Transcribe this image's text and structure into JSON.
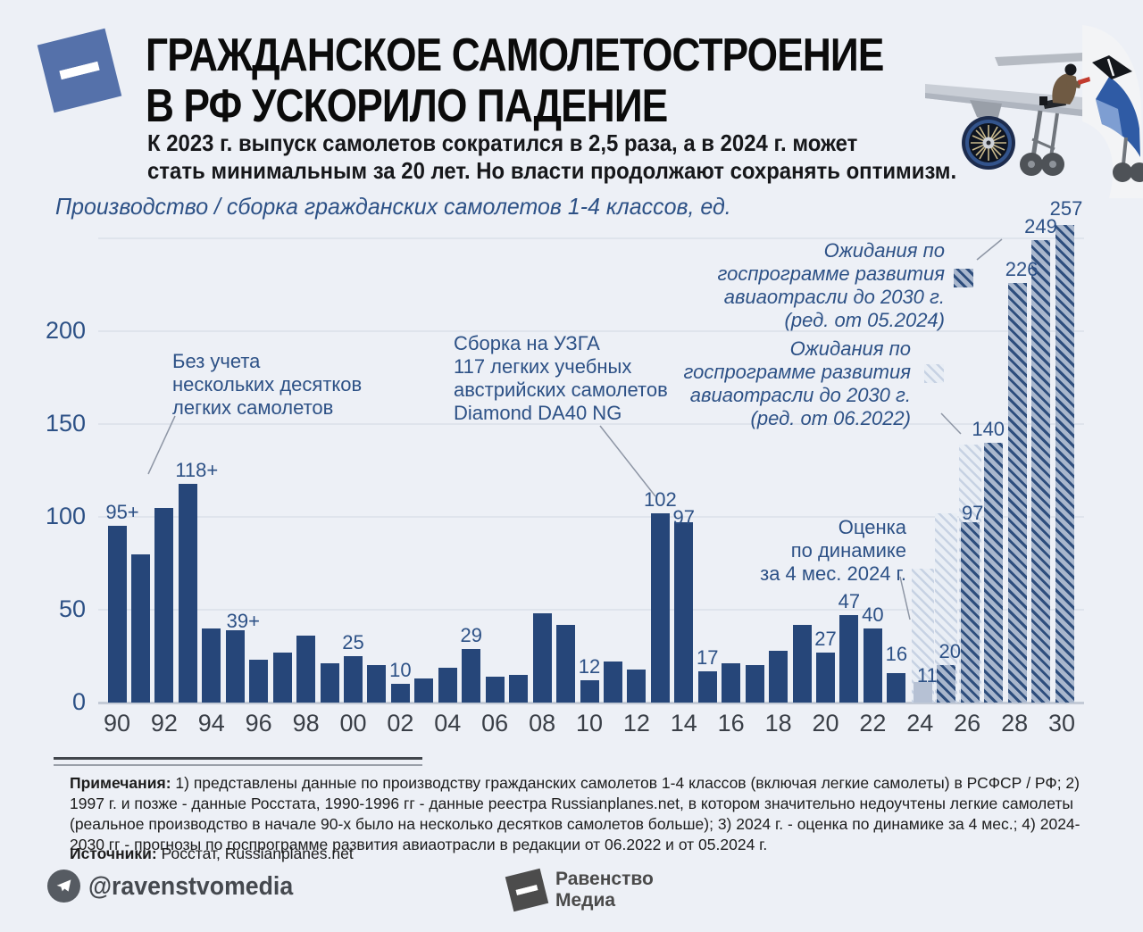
{
  "header": {
    "title_line1": "ГРАЖДАНСКОЕ САМОЛЕТОСТРОЕНИЕ",
    "title_line2": "В РФ УСКОРИЛО ПАДЕНИЕ",
    "subtitle_line1": "К 2023 г. выпуск самолетов сократился в 2,5 раза, а в 2024 г. может",
    "subtitle_line2": "стать минимальным за 20 лет. Но власти продолжают сохранять оптимизм."
  },
  "chart_data": {
    "type": "bar",
    "title": "Производство / сборка гражданских самолетов 1-4 классов, ед.",
    "ylabel": "ед.",
    "ylim": [
      0,
      250
    ],
    "y_ticks": [
      0,
      50,
      100,
      150,
      200
    ],
    "grid": true,
    "x_tick_labels": [
      "90",
      "92",
      "94",
      "96",
      "98",
      "00",
      "02",
      "04",
      "06",
      "08",
      "10",
      "12",
      "14",
      "16",
      "18",
      "20",
      "22",
      "24",
      "26",
      "28",
      "30"
    ],
    "series": [
      {
        "id": "actual_production",
        "style": "solid_navy",
        "points": [
          {
            "year": 1990,
            "value": 95,
            "label": "95+"
          },
          {
            "year": 1991,
            "value": 80
          },
          {
            "year": 1992,
            "value": 105
          },
          {
            "year": 1993,
            "value": 118,
            "label": "118+"
          },
          {
            "year": 1994,
            "value": 40
          },
          {
            "year": 1995,
            "value": 39,
            "label": "39+"
          },
          {
            "year": 1996,
            "value": 23
          },
          {
            "year": 1997,
            "value": 27
          },
          {
            "year": 1998,
            "value": 36
          },
          {
            "year": 1999,
            "value": 21
          },
          {
            "year": 2000,
            "value": 25,
            "label": "25"
          },
          {
            "year": 2001,
            "value": 20
          },
          {
            "year": 2002,
            "value": 10,
            "label": "10"
          },
          {
            "year": 2003,
            "value": 13
          },
          {
            "year": 2004,
            "value": 19
          },
          {
            "year": 2005,
            "value": 29,
            "label": "29"
          },
          {
            "year": 2006,
            "value": 14
          },
          {
            "year": 2007,
            "value": 15
          },
          {
            "year": 2008,
            "value": 48
          },
          {
            "year": 2009,
            "value": 42
          },
          {
            "year": 2010,
            "value": 12,
            "label": "12"
          },
          {
            "year": 2011,
            "value": 22
          },
          {
            "year": 2012,
            "value": 18
          },
          {
            "year": 2013,
            "value": 102,
            "label": "102"
          },
          {
            "year": 2014,
            "value": 97,
            "label": "97"
          },
          {
            "year": 2015,
            "value": 17,
            "label": "17"
          },
          {
            "year": 2016,
            "value": 21
          },
          {
            "year": 2017,
            "value": 20
          },
          {
            "year": 2018,
            "value": 28
          },
          {
            "year": 2019,
            "value": 42
          },
          {
            "year": 2020,
            "value": 27,
            "label": "27"
          },
          {
            "year": 2021,
            "value": 47,
            "label": "47"
          },
          {
            "year": 2022,
            "value": 40,
            "label": "40"
          },
          {
            "year": 2023,
            "value": 16,
            "label": "16"
          }
        ]
      },
      {
        "id": "estimate_4months_2024",
        "style": "solid_gray",
        "points": [
          {
            "year": 2024,
            "value": 11,
            "label": "11"
          }
        ]
      },
      {
        "id": "gosprogram_edition_06_2022",
        "style": "hatched_light",
        "points": [
          {
            "year": 2024,
            "value": 72
          },
          {
            "year": 2025,
            "value": 102
          },
          {
            "year": 2026,
            "value": 139
          }
        ]
      },
      {
        "id": "gosprogram_edition_05_2024",
        "style": "hatched_dark",
        "points": [
          {
            "year": 2025,
            "value": 20,
            "label": "20"
          },
          {
            "year": 2026,
            "value": 97,
            "label": "97"
          },
          {
            "year": 2027,
            "value": 140,
            "label": "140"
          },
          {
            "year": 2028,
            "value": 226,
            "label": "226"
          },
          {
            "year": 2029,
            "value": 249,
            "label": "249"
          },
          {
            "year": 2030,
            "value": 257,
            "label": "257"
          }
        ]
      }
    ]
  },
  "annotations": {
    "light_aircraft": {
      "lines": [
        "Без учета",
        "нескольких десятков",
        "легких самолетов"
      ]
    },
    "uzga": {
      "lines": [
        "Сборка на УЗГА",
        "117 легких учебных",
        "австрийских самолетов",
        "Diamond DA40 NG"
      ]
    },
    "forecast_new": {
      "lines": [
        "Ожидания по",
        "госпрограмме развития",
        "авиаотрасли до 2030 г.",
        "(ред. от 05.2024)"
      ]
    },
    "forecast_old": {
      "lines": [
        "Ожидания по",
        "госпрограмме развития",
        "авиаотрасли до 2030 г.",
        "(ред. от 06.2022)"
      ]
    },
    "estimate": {
      "lines": [
        "Оценка",
        "по динамике",
        "за 4 мес. 2024 г."
      ]
    }
  },
  "footer": {
    "notes_label": "Примечания:",
    "notes_text": " 1) представлены данные по производству гражданских самолетов 1-4 классов (включая легкие самолеты) в РСФСР / РФ; 2) 1997 г. и позже - данные Росстата, 1990-1996 гг - данные реестра Russianplanes.net, в котором значительно недоучтены легкие самолеты (реальное производство в начале 90-х было на несколько десятков самолетов больше); 3) 2024 г. - оценка по динамике за 4 мес.; 4) 2024-2030 гг - прогнозы по госпрограмме развития авиаотрасли в редакции от 06.2022 и от 05.2024 г.",
    "sources_label": "Источники:",
    "sources_text": " Росстат, Russianplanes.net"
  },
  "branding": {
    "telegram_handle": "@ravenstvomedia",
    "brand_line1": "Равенство",
    "brand_line2": "Медиа"
  },
  "colors": {
    "background": "#edf0f6",
    "bar_navy": "#264679",
    "bar_gray": "#b6c1d4",
    "hatch_dark_stripe": "#2e4e7d",
    "hatch_dark_base": "#a9b7cd",
    "hatch_light_stripe": "#c7d2e3",
    "hatch_light_base": "#e9eef5",
    "accent_text": "#2d5186",
    "logo_blue": "#5571aa"
  }
}
